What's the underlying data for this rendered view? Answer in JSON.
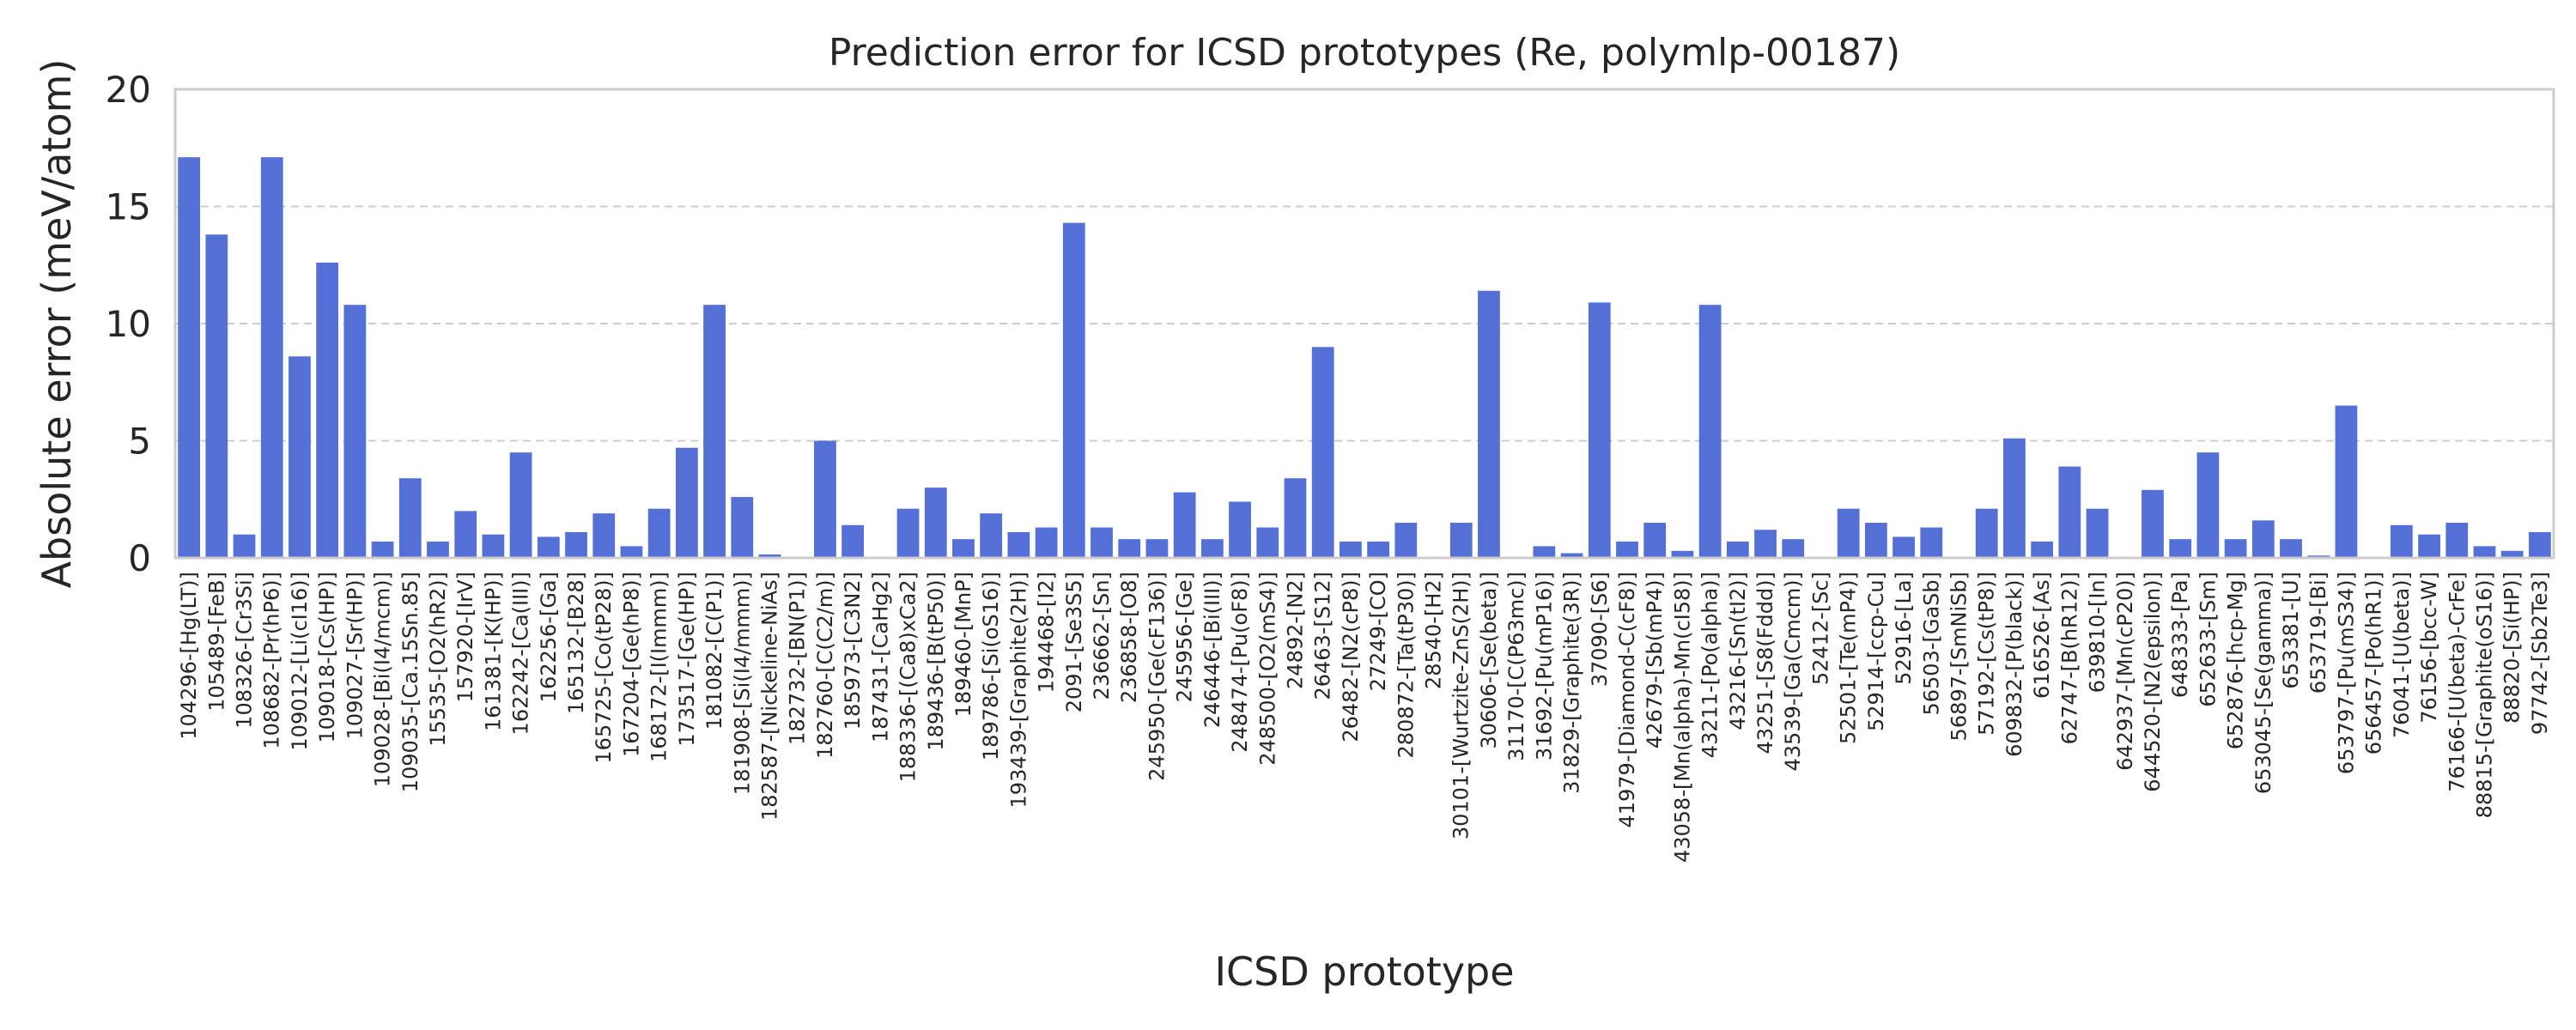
{
  "chart_data": {
    "type": "bar",
    "title": "Prediction error for ICSD prototypes (Re, polymlp-00187)",
    "xlabel": "ICSD prototype",
    "ylabel": "Absolute error (meV/atom)",
    "ylim": [
      0,
      20
    ],
    "yticks": [
      0,
      5,
      10,
      15,
      20
    ],
    "grid": "horizontal dashed",
    "color": "#5470d6",
    "categories": [
      "104296-[Hg(LT)]",
      "105489-[FeB]",
      "108326-[Cr3Si]",
      "108682-[Pr(hP6)]",
      "109012-[Li(cI16)]",
      "109018-[Cs(HP)]",
      "109027-[Sr(HP)]",
      "109028-[Bi(I4/mcm)]",
      "109035-[Ca.15Sn.85]",
      "15535-[O2(hR2)]",
      "157920-[IrV]",
      "161381-[K(HP)]",
      "162242-[Ca(III)]",
      "162256-[Ga]",
      "165132-[B28]",
      "165725-[Co(tP28)]",
      "167204-[Ge(hP8)]",
      "168172-[I(Immm)]",
      "173517-[Ge(HP)]",
      "181082-[C(P1)]",
      "181908-[Si(I4/mmm)]",
      "182587-[Nickeline-NiAs]",
      "182732-[BN(P1)]",
      "182760-[C(C2/m)]",
      "185973-[C3N2]",
      "187431-[CaHg2]",
      "188336-[(Ca8)xCa2]",
      "189436-[B(tP50)]",
      "189460-[MnP]",
      "189786-[Si(oS16)]",
      "193439-[Graphite(2H)]",
      "194468-[I2]",
      "2091-[Se3S5]",
      "236662-[Sn]",
      "236858-[O8]",
      "245950-[Ge(cF136)]",
      "245956-[Ge]",
      "246446-[Bi(III)]",
      "248474-[Pu(oF8)]",
      "248500-[O2(mS4)]",
      "24892-[N2]",
      "26463-[S12]",
      "26482-[N2(cP8)]",
      "27249-[CO]",
      "280872-[Ta(tP30)]",
      "28540-[H2]",
      "30101-[Wurtzite-ZnS(2H)]",
      "30606-[Se(beta)]",
      "31170-[C(P63mc)]",
      "31692-[Pu(mP16)]",
      "31829-[Graphite(3R)]",
      "37090-[S6]",
      "41979-[Diamond-C(cF8)]",
      "42679-[Sb(mP4)]",
      "43058-[Mn(alpha)-Mn(cI58)]",
      "43211-[Po(alpha)]",
      "43216-[Sn(tI2)]",
      "43251-[S8(Fddd)]",
      "43539-[Ga(Cmcm)]",
      "52412-[Sc]",
      "52501-[Te(mP4)]",
      "52914-[ccp-Cu]",
      "52916-[La]",
      "56503-[GaSb]",
      "56897-[SmNiSb]",
      "57192-[Cs(tP8)]",
      "609832-[P(black)]",
      "616526-[As]",
      "62747-[B(hR12)]",
      "639810-[In]",
      "642937-[Mn(cP20)]",
      "644520-[N2(epsilon)]",
      "648333-[Pa]",
      "652633-[Sm]",
      "652876-[hcp-Mg]",
      "653045-[Se(gamma)]",
      "653381-[U]",
      "653719-[Bi]",
      "653797-[Pu(mS34)]",
      "656457-[Po(hR1)]",
      "76041-[U(beta)]",
      "76156-[bcc-W]",
      "76166-[U(beta)-CrFe]",
      "88815-[Graphite(oS16)]",
      "88820-[Si(HP)]",
      "97742-[Sb2Te3]"
    ],
    "values": [
      17.1,
      13.8,
      1.0,
      17.1,
      8.6,
      12.6,
      10.8,
      0.7,
      3.4,
      0.7,
      2.0,
      1.0,
      4.5,
      0.9,
      1.1,
      1.9,
      0.5,
      2.1,
      4.7,
      10.8,
      2.6,
      0.15,
      0.05,
      5.0,
      1.4,
      0.05,
      2.1,
      3.0,
      0.8,
      1.9,
      1.1,
      1.3,
      14.3,
      1.3,
      0.8,
      0.8,
      2.8,
      0.8,
      2.4,
      1.3,
      3.4,
      9.0,
      0.7,
      0.7,
      1.5,
      0.05,
      1.5,
      11.4,
      0.05,
      0.5,
      0.2,
      10.9,
      0.7,
      1.5,
      0.3,
      10.8,
      0.7,
      1.2,
      0.8,
      0.05,
      2.1,
      1.5,
      0.9,
      1.3,
      0.05,
      2.1,
      5.1,
      0.7,
      3.9,
      2.1,
      0.05,
      2.9,
      0.8,
      4.5,
      0.8,
      1.6,
      0.8,
      0.1,
      6.5,
      0.05,
      1.4,
      1.0,
      1.5,
      0.5,
      0.3,
      1.1
    ]
  }
}
